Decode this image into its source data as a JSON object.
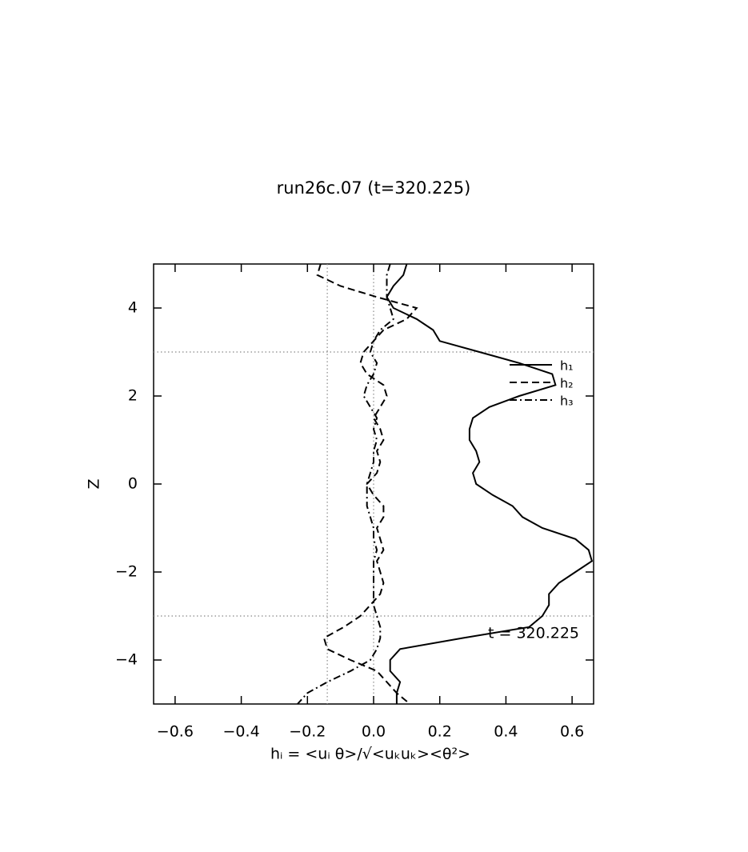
{
  "chart_data": {
    "type": "profile",
    "title": "run26c.07 (t=320.225)",
    "x_label": "hᵢ = <uᵢ θ>/√<uₖuₖ><θ²>",
    "y_label": "Z",
    "annotation": "t = 320.225",
    "legend_position": "upper right",
    "xlim": [
      -0.665,
      0.665
    ],
    "ylim": [
      -5,
      5
    ],
    "xticks": [
      {
        "value": -0.6,
        "label": "−0.6"
      },
      {
        "value": -0.4,
        "label": "−0.4"
      },
      {
        "value": -0.2,
        "label": "−0.2"
      },
      {
        "value": 0,
        "label": "0.0"
      },
      0.2,
      0.4,
      0.6
    ],
    "yticks": [
      {
        "value": -4,
        "label": "−4"
      },
      {
        "value": -2,
        "label": "−2"
      },
      0,
      2,
      4
    ],
    "reference_lines": {
      "x": [
        -0.14,
        0
      ],
      "y": [
        3,
        -3
      ]
    },
    "z": [
      5,
      4.75,
      4.5,
      4.25,
      4,
      3.75,
      3.5,
      3.25,
      3,
      2.75,
      2.5,
      2.25,
      2,
      1.75,
      1.5,
      1.25,
      1,
      0.75,
      0.5,
      0.25,
      0,
      -0.25,
      -0.5,
      -0.75,
      -1,
      -1.25,
      -1.5,
      -1.75,
      -2,
      -2.25,
      -2.5,
      -2.75,
      -3,
      -3.25,
      -3.5,
      -3.75,
      -4,
      -4.25,
      -4.5,
      -4.75,
      -5
    ],
    "series": [
      {
        "name": "h₁",
        "color": "#000000",
        "dash": "solid",
        "values": [
          0.1,
          0.09,
          0.06,
          0.04,
          0.06,
          0.13,
          0.18,
          0.2,
          0.32,
          0.44,
          0.54,
          0.55,
          0.44,
          0.35,
          0.3,
          0.29,
          0.29,
          0.31,
          0.32,
          0.3,
          0.31,
          0.36,
          0.42,
          0.45,
          0.51,
          0.61,
          0.65,
          0.66,
          0.61,
          0.56,
          0.53,
          0.53,
          0.51,
          0.47,
          0.27,
          0.08,
          0.05,
          0.05,
          0.08,
          0.07,
          0.07
        ]
      },
      {
        "name": "h₂",
        "color": "#000000",
        "dash": "dashed",
        "values": [
          -0.16,
          -0.17,
          -0.1,
          0.01,
          0.13,
          0.1,
          0.03,
          0.0,
          -0.03,
          -0.04,
          -0.02,
          0.03,
          0.04,
          0.02,
          0.0,
          0.02,
          0.03,
          0.01,
          0.02,
          0.01,
          -0.02,
          0.0,
          0.03,
          0.03,
          0.01,
          0.02,
          0.03,
          0.01,
          0.02,
          0.03,
          0.02,
          -0.01,
          -0.04,
          -0.09,
          -0.15,
          -0.14,
          -0.07,
          0.01,
          0.04,
          0.07,
          0.11
        ]
      },
      {
        "name": "h₃",
        "color": "#000000",
        "dash": "dashdot",
        "values": [
          0.05,
          0.04,
          0.04,
          0.04,
          0.05,
          0.06,
          0.02,
          0.0,
          -0.01,
          0.01,
          0.0,
          -0.02,
          -0.03,
          -0.01,
          0.01,
          0.0,
          0.01,
          0.0,
          0.0,
          -0.01,
          -0.02,
          -0.02,
          -0.02,
          -0.01,
          0.0,
          0.0,
          0.01,
          0.0,
          0.0,
          0.0,
          0.0,
          0.0,
          0.01,
          0.02,
          0.02,
          0.01,
          -0.01,
          -0.07,
          -0.14,
          -0.2,
          -0.23
        ]
      }
    ]
  }
}
